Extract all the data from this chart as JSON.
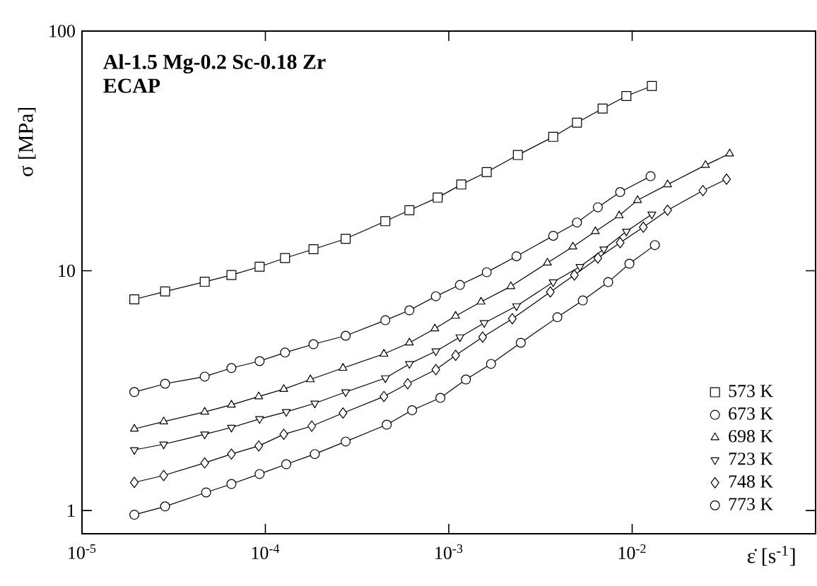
{
  "chart_data": {
    "type": "line",
    "title": "Al-1.5 Mg-0.2 Sc-0.18 Zr",
    "subtitle": "ECAP",
    "xlabel": "ε̇ [s$^{-1}$]",
    "ylabel": "σ [MPa]",
    "log": "xy",
    "xlim": [
      1e-05,
      0.1
    ],
    "ylim": [
      0.8,
      100
    ],
    "xticks": [
      {
        "value": 1e-05,
        "label": "10$^{-5}$"
      },
      {
        "value": 0.0001,
        "label": "10$^{-4}$"
      },
      {
        "value": 0.001,
        "label": "10$^{-3}$"
      },
      {
        "value": 0.01,
        "label": "10$^{-2}$"
      }
    ],
    "yticks": [
      1,
      10,
      100
    ],
    "legend": "bottom right",
    "grid": false,
    "line_style": "solid",
    "series": [
      {
        "name": "573 K",
        "color": "#000000",
        "marker": "square",
        "x": [
          1.93e-05,
          2.84e-05,
          4.67e-05,
          6.53e-05,
          9.3e-05,
          0.000128,
          0.000183,
          0.000274,
          0.000451,
          0.00061,
          0.00087,
          0.00117,
          0.00161,
          0.00238,
          0.00371,
          0.005,
          0.0069,
          0.0093,
          0.0128
        ],
        "values": [
          7.6,
          8.2,
          9.0,
          9.6,
          10.4,
          11.3,
          12.3,
          13.6,
          16.1,
          17.9,
          20.2,
          22.9,
          25.8,
          30.4,
          36.2,
          41.5,
          47.5,
          53.6,
          59.0
        ]
      },
      {
        "name": "673 K",
        "color": "#000000",
        "marker": "circle",
        "x": [
          1.93e-05,
          2.84e-05,
          4.67e-05,
          6.53e-05,
          9.3e-05,
          0.000128,
          0.000183,
          0.000274,
          0.000451,
          0.00061,
          0.00085,
          0.00115,
          0.00161,
          0.00234,
          0.00371,
          0.005,
          0.0065,
          0.0086,
          0.0126
        ],
        "values": [
          3.12,
          3.38,
          3.62,
          3.93,
          4.2,
          4.56,
          4.94,
          5.36,
          6.22,
          6.84,
          7.83,
          8.73,
          9.86,
          11.5,
          14.0,
          15.9,
          18.4,
          21.3,
          24.8
        ]
      },
      {
        "name": "698 K",
        "color": "#000000",
        "marker": "triangle",
        "x": [
          1.93e-05,
          2.79e-05,
          4.67e-05,
          6.53e-05,
          9.2e-05,
          0.000126,
          0.000176,
          0.000265,
          0.000443,
          0.00061,
          0.00084,
          0.00109,
          0.0015,
          0.00218,
          0.00345,
          0.00475,
          0.0063,
          0.0085,
          0.0107,
          0.0156,
          0.0251,
          0.034
        ],
        "values": [
          2.19,
          2.35,
          2.58,
          2.76,
          2.99,
          3.21,
          3.52,
          3.93,
          4.5,
          5.01,
          5.74,
          6.48,
          7.42,
          8.61,
          10.8,
          12.6,
          14.6,
          17.0,
          19.7,
          22.9,
          27.6,
          30.8
        ]
      },
      {
        "name": "723 K",
        "color": "#000000",
        "marker": "triangle down",
        "x": [
          1.93e-05,
          2.79e-05,
          4.67e-05,
          6.53e-05,
          9.3e-05,
          0.00013,
          0.000186,
          0.000274,
          0.000451,
          0.00061,
          0.00085,
          0.00115,
          0.00156,
          0.00234,
          0.00371,
          0.00519,
          0.007,
          0.0093,
          0.0128
        ],
        "values": [
          1.79,
          1.89,
          2.08,
          2.22,
          2.41,
          2.58,
          2.8,
          3.12,
          3.57,
          4.09,
          4.62,
          5.29,
          6.06,
          7.13,
          8.97,
          10.4,
          12.3,
          14.6,
          17.2
        ]
      },
      {
        "name": "748 K",
        "color": "#000000",
        "marker": "diamond",
        "x": [
          1.93e-05,
          2.79e-05,
          4.67e-05,
          6.53e-05,
          9.2e-05,
          0.000126,
          0.000179,
          0.000265,
          0.000443,
          0.000597,
          0.00085,
          0.00109,
          0.00153,
          0.00222,
          0.00358,
          0.00484,
          0.0065,
          0.0086,
          0.0115,
          0.0156,
          0.0243,
          0.0327
        ],
        "values": [
          1.31,
          1.4,
          1.58,
          1.72,
          1.86,
          2.08,
          2.25,
          2.55,
          2.99,
          3.38,
          3.87,
          4.44,
          5.29,
          6.31,
          8.16,
          9.6,
          11.3,
          13.1,
          15.2,
          17.9,
          21.6,
          24.1
        ]
      },
      {
        "name": "773 K",
        "color": "#000000",
        "marker": "circle",
        "x": [
          1.93e-05,
          2.84e-05,
          4.75e-05,
          6.53e-05,
          9.3e-05,
          0.00013,
          0.000186,
          0.000274,
          0.000459,
          0.000631,
          0.0009,
          0.00124,
          0.0017,
          0.00247,
          0.00391,
          0.00538,
          0.0074,
          0.00966,
          0.0133
        ],
        "values": [
          0.96,
          1.04,
          1.19,
          1.29,
          1.42,
          1.56,
          1.72,
          1.94,
          2.28,
          2.62,
          2.95,
          3.52,
          4.09,
          5.01,
          6.4,
          7.52,
          8.97,
          10.7,
          12.8
        ]
      }
    ]
  }
}
